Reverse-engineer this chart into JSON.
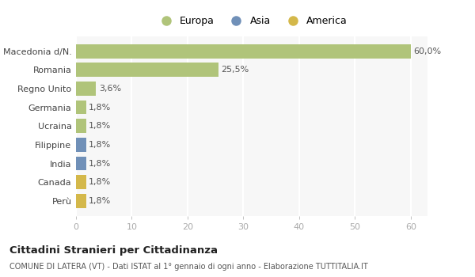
{
  "categories": [
    "Perù",
    "Canada",
    "India",
    "Filippine",
    "Ucraina",
    "Germania",
    "Regno Unito",
    "Romania",
    "Macedonia d/N."
  ],
  "values": [
    1.8,
    1.8,
    1.8,
    1.8,
    1.8,
    1.8,
    3.6,
    25.5,
    60.0
  ],
  "colors": [
    "#d4b84a",
    "#d4b84a",
    "#7090b8",
    "#7090b8",
    "#b0c47a",
    "#b0c47a",
    "#b0c47a",
    "#b0c47a",
    "#b0c47a"
  ],
  "labels": [
    "1,8%",
    "1,8%",
    "1,8%",
    "1,8%",
    "1,8%",
    "1,8%",
    "3,6%",
    "25,5%",
    "60,0%"
  ],
  "xlim": [
    0,
    63
  ],
  "xticks": [
    0,
    10,
    20,
    30,
    40,
    50,
    60
  ],
  "legend_entries": [
    {
      "label": "Europa",
      "color": "#b0c47a"
    },
    {
      "label": "Asia",
      "color": "#7090b8"
    },
    {
      "label": "America",
      "color": "#d4b84a"
    }
  ],
  "title": "Cittadini Stranieri per Cittadinanza",
  "subtitle": "COMUNE DI LATERA (VT) - Dati ISTAT al 1° gennaio di ogni anno - Elaborazione TUTTITALIA.IT",
  "background_color": "#ffffff",
  "plot_bg_color": "#f7f7f7",
  "grid_color": "#ffffff",
  "bar_height": 0.75
}
